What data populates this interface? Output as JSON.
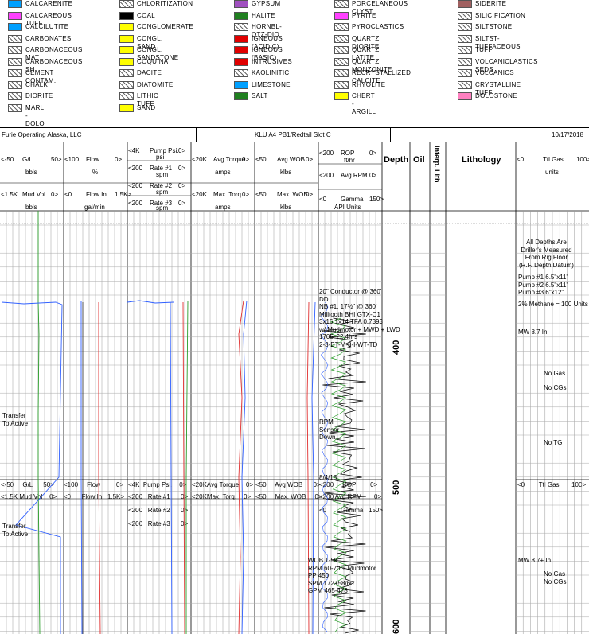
{
  "legend": [
    {
      "label": "CALCARENITE",
      "color": "#00a0ff"
    },
    {
      "label": "CHLORITIZATION",
      "color": "#ffffff"
    },
    {
      "label": "GYPSUM",
      "color": "#a050c0"
    },
    {
      "label": "PORCELANEOUS CLYST",
      "color": "#ffffff"
    },
    {
      "label": "SIDERITE",
      "color": "#a06060"
    },
    {
      "label": "CALCAREOUS TUFF",
      "color": "#ff40ff"
    },
    {
      "label": "COAL",
      "color": "#000000"
    },
    {
      "label": "HALITE",
      "color": "#208020"
    },
    {
      "label": "PYRITE",
      "color": "#ff40ff"
    },
    {
      "label": "SILICIFICATION",
      "color": "#ffffff"
    },
    {
      "label": "CALCILUTITE",
      "color": "#00a0ff"
    },
    {
      "label": "CONGLOMERATE",
      "color": "#ffff00"
    },
    {
      "label": "HORNBL-QTZ-DIO",
      "color": "#ffffff"
    },
    {
      "label": "PYROCLASTICS",
      "color": "#ffffff"
    },
    {
      "label": "SILTSTONE",
      "color": "#ffffff"
    },
    {
      "label": "CARBONATES",
      "color": "#ffffff"
    },
    {
      "label": "CONGL. SAND",
      "color": "#ffff00"
    },
    {
      "label": "IGNEOUS (ACIDIC)",
      "color": "#e00000"
    },
    {
      "label": "QUARTZ DIORITE",
      "color": "#ffffff"
    },
    {
      "label": "SILTST-TUFFACEOUS",
      "color": "#ffffff"
    },
    {
      "label": "CARBONACEOUS MAT",
      "color": "#ffffff"
    },
    {
      "label": "CONGL. SANDSTONE",
      "color": "#ffff00"
    },
    {
      "label": "IGNEOUS (BASIC)",
      "color": "#e00000"
    },
    {
      "label": "QUARTZ LATITE",
      "color": "#ffffff"
    },
    {
      "label": "TUFF",
      "color": "#ffffff"
    },
    {
      "label": "CARBONACEOUS SH",
      "color": "#ffffff"
    },
    {
      "label": "COQUINA",
      "color": "#ffff00"
    },
    {
      "label": "INTRUSIVES",
      "color": "#e00000"
    },
    {
      "label": "QUARTZ MONZONITE",
      "color": "#ffffff"
    },
    {
      "label": "VOLCANICLASTICS SEDS",
      "color": "#ffffff"
    },
    {
      "label": "CEMENT CONTAM.",
      "color": "#ffffff"
    },
    {
      "label": "DACITE",
      "color": "#ffffff"
    },
    {
      "label": "KAOLINITIC",
      "color": "#ffffff"
    },
    {
      "label": "RECRYSTALLIZED CALCITE",
      "color": "#ffffff"
    },
    {
      "label": "VOLCANICS",
      "color": "#ffffff"
    },
    {
      "label": "CHALK",
      "color": "#ffffff"
    },
    {
      "label": "DIATOMITE",
      "color": "#ffffff"
    },
    {
      "label": "LIMESTONE",
      "color": "#00a0ff"
    },
    {
      "label": "RHYOLITE",
      "color": "#ffffff"
    },
    {
      "label": "CRYSTALLINE TUFF",
      "color": "#ffffff"
    },
    {
      "label": "DIORITE",
      "color": "#ffffff"
    },
    {
      "label": "LITHIC TUFF",
      "color": "#ffffff"
    },
    {
      "label": "SALT",
      "color": "#208020"
    },
    {
      "label": "CHERT - ARGILL",
      "color": "#ffff00"
    },
    {
      "label": "DOLOSTONE",
      "color": "#ff80c0"
    },
    {
      "label": "MARL - DOLO",
      "color": "#ffffff"
    },
    {
      "label": "SAND",
      "color": "#ffff00"
    }
  ],
  "info": {
    "company": "Furie Operating Alaska, LLC",
    "well": "KLU A4 PB1/Redtail Slot C",
    "date": "10/17/2018"
  },
  "header": {
    "gl": {
      "min": "<-50",
      "name": "G/L",
      "max": "50>",
      "unit": "bbls"
    },
    "flow": {
      "min": "<100",
      "name": "Flow",
      "max": "0>",
      "unit": "%"
    },
    "mudvol": {
      "min": "<1.5K",
      "name": "Mud Vol",
      "max": "0>",
      "unit": "bbls"
    },
    "flowin": {
      "min": "<0",
      "name": "Flow In",
      "max": "1.5K>",
      "unit": "gal/min"
    },
    "pump": {
      "min": "<4K",
      "name": "Pump Psi.",
      "max": "0>",
      "unit": "psi"
    },
    "rate1": {
      "min": "<200",
      "name": "Rate #1",
      "max": "0>",
      "unit": "spm"
    },
    "rate2": {
      "min": "<200",
      "name": "Rate #2",
      "max": "0>",
      "unit": "spm"
    },
    "rate3": {
      "min": "<200",
      "name": "Rate #3",
      "max": "0>",
      "unit": "spm"
    },
    "torque": {
      "min": "<20K",
      "name": "Avg Torque",
      "max": "0>",
      "unit": "amps"
    },
    "maxtorq": {
      "min": "<20K",
      "name": "Max. Torq.",
      "max": "0>",
      "unit": "amps"
    },
    "wob": {
      "min": "<50",
      "name": "Avg WOB",
      "max": "0>",
      "unit": "klbs"
    },
    "maxwob": {
      "min": "<50",
      "name": "Max. WOB",
      "max": "0>",
      "unit": "klbs"
    },
    "rop": {
      "min": "<200",
      "name": "ROP",
      "max": "0>",
      "unit": "ft/hr"
    },
    "rpm": {
      "min": "<200",
      "name": "Avg RPM",
      "max": "0>"
    },
    "gamma": {
      "min": "<0",
      "name": "Gamma",
      "max": "150>",
      "unit": "API Units"
    },
    "depth": "Depth",
    "oil": "Oil",
    "interp": "Interp. Lith",
    "lithology": "Lithology",
    "ttlgas": {
      "min": "<0",
      "name": "Ttl Gas",
      "max": "100>",
      "unit": "units"
    }
  },
  "repeat_header": {
    "gl": "<-50     G/L      50>",
    "flow": "<100     Flow         0>",
    "mudvol": "<1.5K Mud Vol    0>",
    "flowin": "<0      Flow In   1.5K>",
    "pump": "<4K  Pump Psi.    0>",
    "rate1": "<200   Rate #1      0>",
    "rate2": "<200   Rate #2      0>",
    "rate3": "<200   Rate #3      0>",
    "torque": "<20KAvg Torque    0>",
    "maxtorq": "<20KMax. Torq.    0>",
    "wob": "<50     Avg WOB      0>",
    "maxwob": "<50     Max. WOB     0>",
    "rop": "<200     ROP        0>",
    "rpm": "<200 Avg RPM       0>",
    "gamma": "<0        Gamma   150>",
    "ttlgas": "<0        Ttl Gas       100>"
  },
  "depths": [
    "400",
    "500",
    "600"
  ],
  "annotations": {
    "transfer1": "Transfer\nTo Active",
    "transfer2": "Transfer\nTo Active",
    "conductor": "20\" Conductor @ 360'\nDD\nNB #1, 17½\" @ 360'\nMilltooth BHI GTX-C1\n3x16,1x14 TFA 0.7393\nw/ Mudmotor + MWD + LWD\n1705' 22.4hrs\n2-3-BT-M-3-I-WT-TD",
    "rpm_sensor": "RPM\nSensor\nDown",
    "date_mark": "8/4/18",
    "wob_block": "WOB 1-5k\nRPM 60-70 + Mudmotor\nPP 450\nSPM 172+58/60\nGPM 465-478",
    "all_depths": "All Depths Are\nDriller's Measured\nFrom Rig Floor\n(R.F. Depth Datum)",
    "pumps": "Pump #1 6.5\"x11\"\nPump #2 6.5\"x11\"\nPump #3 6\"x12\"",
    "methane": "2% Methane = 100 Units",
    "mw1": "MW 8.7 In",
    "no_gas": "No Gas",
    "no_cgs": "No CGs",
    "no_tg": "No TG",
    "mw2": "MW 8.7+ In",
    "no_gas2": "No Gas\nNo CGs"
  }
}
